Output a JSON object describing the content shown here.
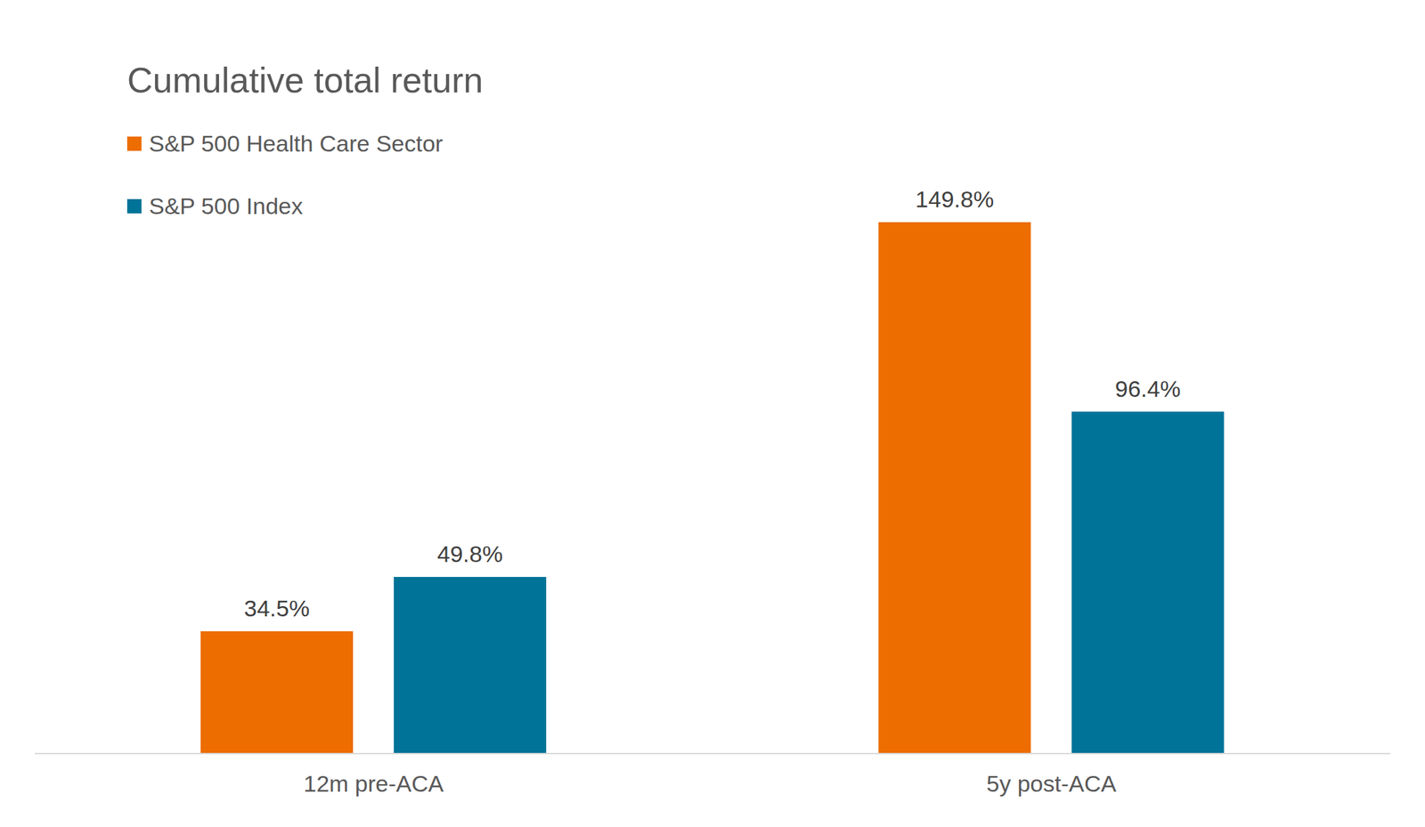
{
  "chart_data": {
    "type": "bar",
    "title": "Cumulative total return",
    "categories": [
      "12m pre-ACA",
      "5y post-ACA"
    ],
    "series": [
      {
        "name": "S&P 500 Health Care Sector",
        "color": "#ED6D00",
        "values": [
          34.5,
          149.8
        ],
        "value_labels": [
          "34.5%",
          "149.8%"
        ]
      },
      {
        "name": "S&P 500 Index",
        "color": "#007398",
        "values": [
          49.8,
          96.4
        ],
        "value_labels": [
          "49.8%",
          "96.4%"
        ]
      }
    ],
    "data_labels": true,
    "legend": "upper left",
    "tick_labels": "x",
    "grid": false
  }
}
